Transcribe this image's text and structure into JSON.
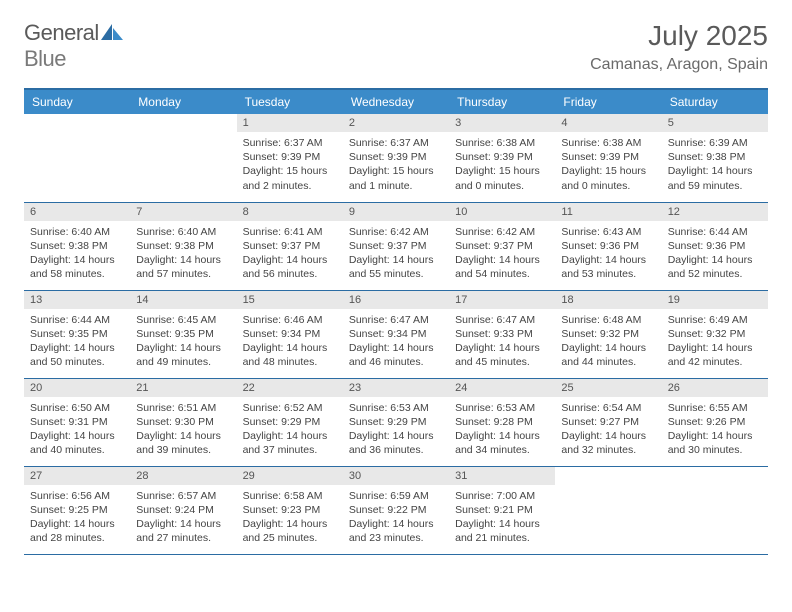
{
  "logo": {
    "text1": "General",
    "text2": "Blue"
  },
  "title": "July 2025",
  "location": "Camanas, Aragon, Spain",
  "colors": {
    "header_bg": "#3b8bc9",
    "border": "#2b6ca3",
    "daynum_bg": "#e8e8e8"
  },
  "weekdays": [
    "Sunday",
    "Monday",
    "Tuesday",
    "Wednesday",
    "Thursday",
    "Friday",
    "Saturday"
  ],
  "weeks": [
    [
      null,
      null,
      {
        "n": "1",
        "sr": "Sunrise: 6:37 AM",
        "ss": "Sunset: 9:39 PM",
        "dl": "Daylight: 15 hours and 2 minutes."
      },
      {
        "n": "2",
        "sr": "Sunrise: 6:37 AM",
        "ss": "Sunset: 9:39 PM",
        "dl": "Daylight: 15 hours and 1 minute."
      },
      {
        "n": "3",
        "sr": "Sunrise: 6:38 AM",
        "ss": "Sunset: 9:39 PM",
        "dl": "Daylight: 15 hours and 0 minutes."
      },
      {
        "n": "4",
        "sr": "Sunrise: 6:38 AM",
        "ss": "Sunset: 9:39 PM",
        "dl": "Daylight: 15 hours and 0 minutes."
      },
      {
        "n": "5",
        "sr": "Sunrise: 6:39 AM",
        "ss": "Sunset: 9:38 PM",
        "dl": "Daylight: 14 hours and 59 minutes."
      }
    ],
    [
      {
        "n": "6",
        "sr": "Sunrise: 6:40 AM",
        "ss": "Sunset: 9:38 PM",
        "dl": "Daylight: 14 hours and 58 minutes."
      },
      {
        "n": "7",
        "sr": "Sunrise: 6:40 AM",
        "ss": "Sunset: 9:38 PM",
        "dl": "Daylight: 14 hours and 57 minutes."
      },
      {
        "n": "8",
        "sr": "Sunrise: 6:41 AM",
        "ss": "Sunset: 9:37 PM",
        "dl": "Daylight: 14 hours and 56 minutes."
      },
      {
        "n": "9",
        "sr": "Sunrise: 6:42 AM",
        "ss": "Sunset: 9:37 PM",
        "dl": "Daylight: 14 hours and 55 minutes."
      },
      {
        "n": "10",
        "sr": "Sunrise: 6:42 AM",
        "ss": "Sunset: 9:37 PM",
        "dl": "Daylight: 14 hours and 54 minutes."
      },
      {
        "n": "11",
        "sr": "Sunrise: 6:43 AM",
        "ss": "Sunset: 9:36 PM",
        "dl": "Daylight: 14 hours and 53 minutes."
      },
      {
        "n": "12",
        "sr": "Sunrise: 6:44 AM",
        "ss": "Sunset: 9:36 PM",
        "dl": "Daylight: 14 hours and 52 minutes."
      }
    ],
    [
      {
        "n": "13",
        "sr": "Sunrise: 6:44 AM",
        "ss": "Sunset: 9:35 PM",
        "dl": "Daylight: 14 hours and 50 minutes."
      },
      {
        "n": "14",
        "sr": "Sunrise: 6:45 AM",
        "ss": "Sunset: 9:35 PM",
        "dl": "Daylight: 14 hours and 49 minutes."
      },
      {
        "n": "15",
        "sr": "Sunrise: 6:46 AM",
        "ss": "Sunset: 9:34 PM",
        "dl": "Daylight: 14 hours and 48 minutes."
      },
      {
        "n": "16",
        "sr": "Sunrise: 6:47 AM",
        "ss": "Sunset: 9:34 PM",
        "dl": "Daylight: 14 hours and 46 minutes."
      },
      {
        "n": "17",
        "sr": "Sunrise: 6:47 AM",
        "ss": "Sunset: 9:33 PM",
        "dl": "Daylight: 14 hours and 45 minutes."
      },
      {
        "n": "18",
        "sr": "Sunrise: 6:48 AM",
        "ss": "Sunset: 9:32 PM",
        "dl": "Daylight: 14 hours and 44 minutes."
      },
      {
        "n": "19",
        "sr": "Sunrise: 6:49 AM",
        "ss": "Sunset: 9:32 PM",
        "dl": "Daylight: 14 hours and 42 minutes."
      }
    ],
    [
      {
        "n": "20",
        "sr": "Sunrise: 6:50 AM",
        "ss": "Sunset: 9:31 PM",
        "dl": "Daylight: 14 hours and 40 minutes."
      },
      {
        "n": "21",
        "sr": "Sunrise: 6:51 AM",
        "ss": "Sunset: 9:30 PM",
        "dl": "Daylight: 14 hours and 39 minutes."
      },
      {
        "n": "22",
        "sr": "Sunrise: 6:52 AM",
        "ss": "Sunset: 9:29 PM",
        "dl": "Daylight: 14 hours and 37 minutes."
      },
      {
        "n": "23",
        "sr": "Sunrise: 6:53 AM",
        "ss": "Sunset: 9:29 PM",
        "dl": "Daylight: 14 hours and 36 minutes."
      },
      {
        "n": "24",
        "sr": "Sunrise: 6:53 AM",
        "ss": "Sunset: 9:28 PM",
        "dl": "Daylight: 14 hours and 34 minutes."
      },
      {
        "n": "25",
        "sr": "Sunrise: 6:54 AM",
        "ss": "Sunset: 9:27 PM",
        "dl": "Daylight: 14 hours and 32 minutes."
      },
      {
        "n": "26",
        "sr": "Sunrise: 6:55 AM",
        "ss": "Sunset: 9:26 PM",
        "dl": "Daylight: 14 hours and 30 minutes."
      }
    ],
    [
      {
        "n": "27",
        "sr": "Sunrise: 6:56 AM",
        "ss": "Sunset: 9:25 PM",
        "dl": "Daylight: 14 hours and 28 minutes."
      },
      {
        "n": "28",
        "sr": "Sunrise: 6:57 AM",
        "ss": "Sunset: 9:24 PM",
        "dl": "Daylight: 14 hours and 27 minutes."
      },
      {
        "n": "29",
        "sr": "Sunrise: 6:58 AM",
        "ss": "Sunset: 9:23 PM",
        "dl": "Daylight: 14 hours and 25 minutes."
      },
      {
        "n": "30",
        "sr": "Sunrise: 6:59 AM",
        "ss": "Sunset: 9:22 PM",
        "dl": "Daylight: 14 hours and 23 minutes."
      },
      {
        "n": "31",
        "sr": "Sunrise: 7:00 AM",
        "ss": "Sunset: 9:21 PM",
        "dl": "Daylight: 14 hours and 21 minutes."
      },
      null,
      null
    ]
  ]
}
